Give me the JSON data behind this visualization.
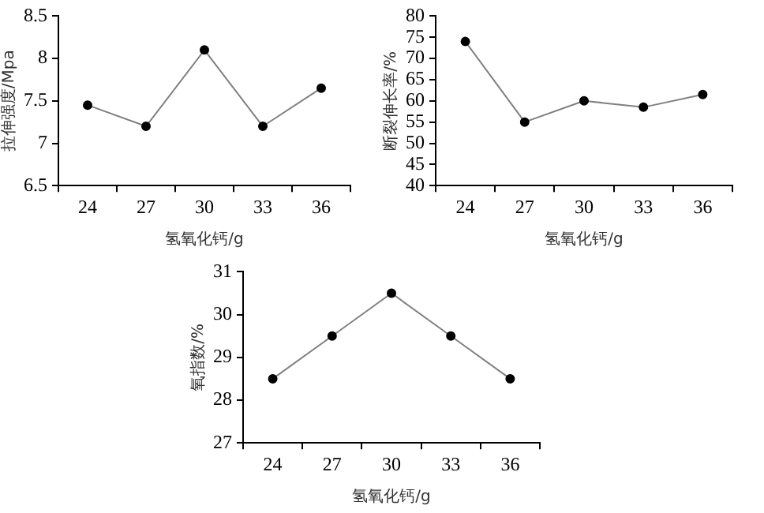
{
  "chart_data": [
    {
      "type": "line",
      "xlabel": "氢氧化钙/g",
      "ylabel": "拉伸强度/Mpa",
      "categories": [
        "24",
        "27",
        "30",
        "33",
        "36"
      ],
      "series": [
        {
          "color": "#808080",
          "values": [
            7.45,
            7.2,
            8.1,
            7.2,
            7.65
          ]
        }
      ],
      "ylim": [
        6.5,
        8.5
      ],
      "yticks": [
        6.5,
        7,
        7.5,
        8,
        8.5
      ],
      "marker": "circle",
      "grid": false,
      "legend": false
    },
    {
      "type": "line",
      "xlabel": "氢氧化钙/g",
      "ylabel": "断裂伸长率/%",
      "categories": [
        "24",
        "27",
        "30",
        "33",
        "36"
      ],
      "series": [
        {
          "color": "#808080",
          "values": [
            74,
            55,
            60,
            58.5,
            61.5
          ]
        }
      ],
      "ylim": [
        40,
        80
      ],
      "yticks": [
        40,
        45,
        50,
        55,
        60,
        65,
        70,
        75,
        80
      ],
      "marker": "circle",
      "grid": false,
      "legend": false
    },
    {
      "type": "line",
      "xlabel": "氢氧化钙/g",
      "ylabel": "氧指数/%",
      "categories": [
        "24",
        "27",
        "30",
        "33",
        "36"
      ],
      "series": [
        {
          "color": "#808080",
          "values": [
            28.5,
            29.5,
            30.5,
            29.5,
            28.5
          ]
        }
      ],
      "ylim": [
        27,
        31
      ],
      "yticks": [
        27,
        28,
        29,
        30,
        31
      ],
      "marker": "circle",
      "grid": false,
      "legend": false
    }
  ]
}
